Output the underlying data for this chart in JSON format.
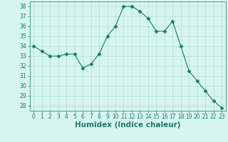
{
  "x": [
    0,
    1,
    2,
    3,
    4,
    5,
    6,
    7,
    8,
    9,
    10,
    11,
    12,
    13,
    14,
    15,
    16,
    17,
    18,
    19,
    20,
    21,
    22,
    23
  ],
  "y": [
    34.0,
    33.5,
    33.0,
    33.0,
    33.2,
    33.2,
    31.8,
    32.2,
    33.2,
    35.0,
    36.0,
    38.0,
    38.0,
    37.5,
    36.8,
    35.5,
    35.5,
    36.5,
    34.0,
    31.5,
    30.5,
    29.5,
    28.5,
    27.8
  ],
  "line_color": "#1a7a6a",
  "marker": "D",
  "marker_size": 2.5,
  "bg_color": "#d6f5f0",
  "grid_color": "#b0ddd8",
  "xlabel": "Humidex (Indice chaleur)",
  "ylim": [
    27.5,
    38.5
  ],
  "yticks": [
    28,
    29,
    30,
    31,
    32,
    33,
    34,
    35,
    36,
    37,
    38
  ],
  "xticks": [
    0,
    1,
    2,
    3,
    4,
    5,
    6,
    7,
    8,
    9,
    10,
    11,
    12,
    13,
    14,
    15,
    16,
    17,
    18,
    19,
    20,
    21,
    22,
    23
  ],
  "tick_label_fontsize": 5.5,
  "xlabel_fontsize": 7.5
}
